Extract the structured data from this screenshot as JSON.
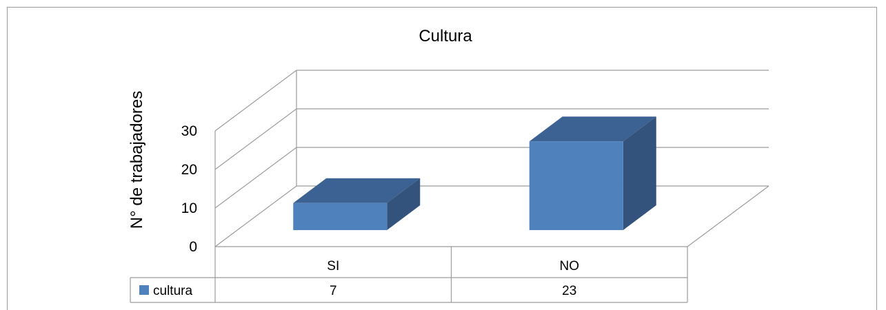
{
  "chart_data": {
    "type": "bar",
    "title": "Cultura",
    "ylabel": "N° de trabajadores",
    "xlabel": "",
    "categories": [
      "SI",
      "NO"
    ],
    "series": [
      {
        "name": "cultura",
        "values": [
          7,
          23
        ],
        "color": "#4f81bd"
      }
    ],
    "ylim": [
      0,
      30
    ],
    "yticks": [
      0,
      10,
      20,
      30
    ],
    "grid": true,
    "legend": "data-table",
    "data_table": true
  }
}
